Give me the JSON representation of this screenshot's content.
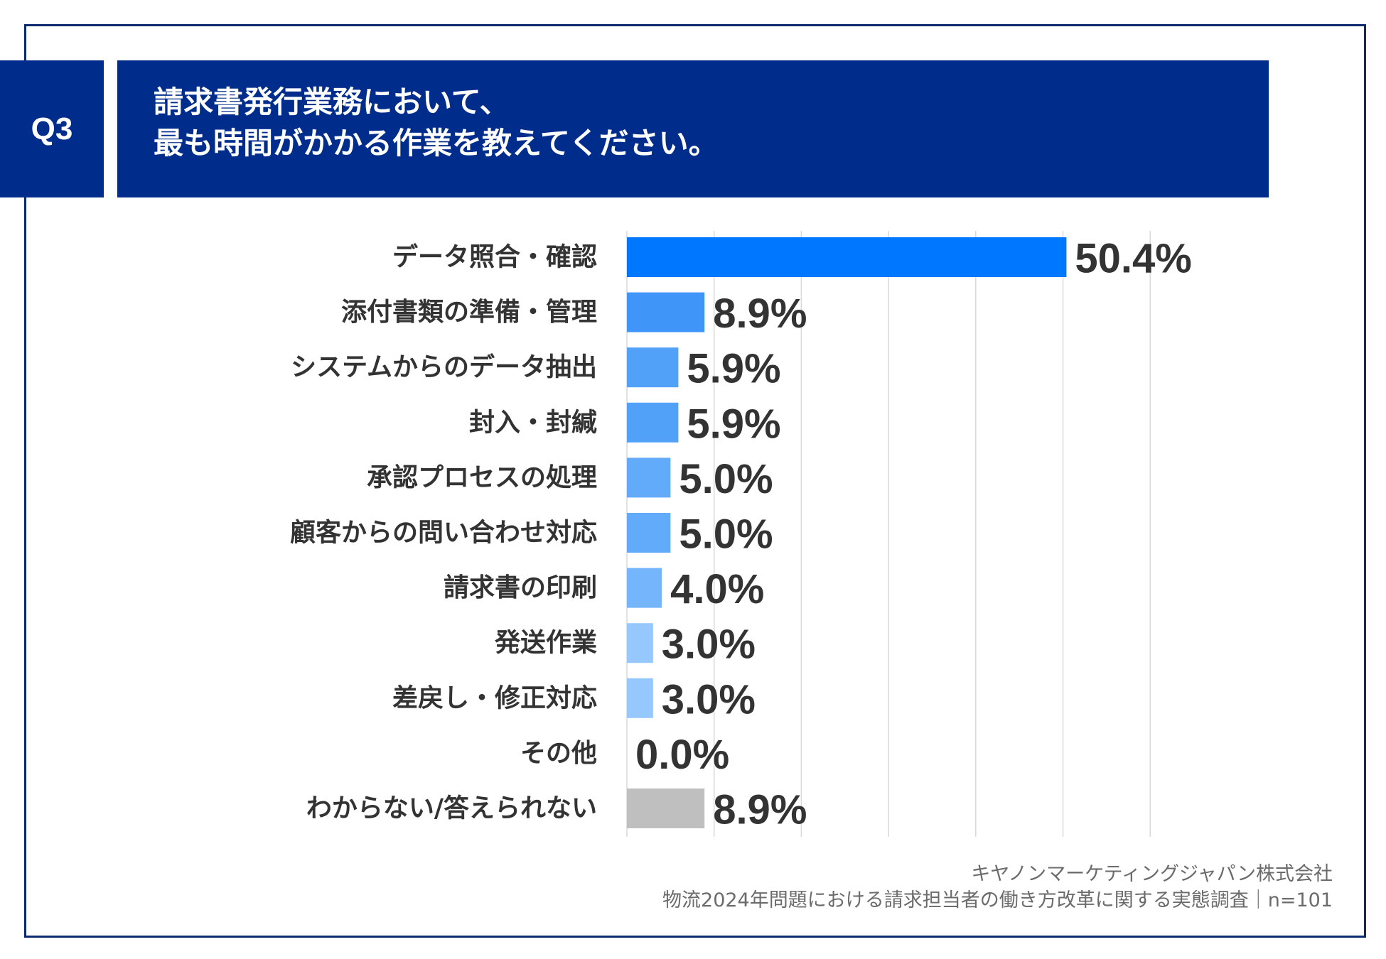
{
  "question": {
    "badge": "Q3",
    "title_line1": "請求書発行業務において、",
    "title_line2": "最も時間がかかる作業を教えてください。"
  },
  "chart_data": {
    "type": "bar",
    "orientation": "horizontal",
    "categories": [
      "データ照合・確認",
      "添付書類の準備・管理",
      "システムからのデータ抽出",
      "封入・封緘",
      "承認プロセスの処理",
      "顧客からの問い合わせ対応",
      "請求書の印刷",
      "発送作業",
      "差戻し・修正対応",
      "その他",
      "わからない/答えられない"
    ],
    "values": [
      50.4,
      8.9,
      5.9,
      5.9,
      5.0,
      5.0,
      4.0,
      3.0,
      3.0,
      0.0,
      8.9
    ],
    "value_labels": [
      "50.4%",
      "8.9%",
      "5.9%",
      "5.9%",
      "5.0%",
      "5.0%",
      "4.0%",
      "3.0%",
      "3.0%",
      "0.0%",
      "8.9%"
    ],
    "colors": [
      "#0077ff",
      "#3f96f8",
      "#51a1f9",
      "#51a1f9",
      "#62abfb",
      "#62abfb",
      "#74b5fb",
      "#96c8fd",
      "#96c8fd",
      "#b5d8fe",
      "#bfbfbf"
    ],
    "xlim": [
      0,
      60
    ],
    "grid": true,
    "legend": "none"
  },
  "footer": {
    "line1": "キヤノンマーケティングジャパン株式会社",
    "line2": "物流2024年問題における請求担当者の働き方改革に関する実態調査｜n=101"
  }
}
